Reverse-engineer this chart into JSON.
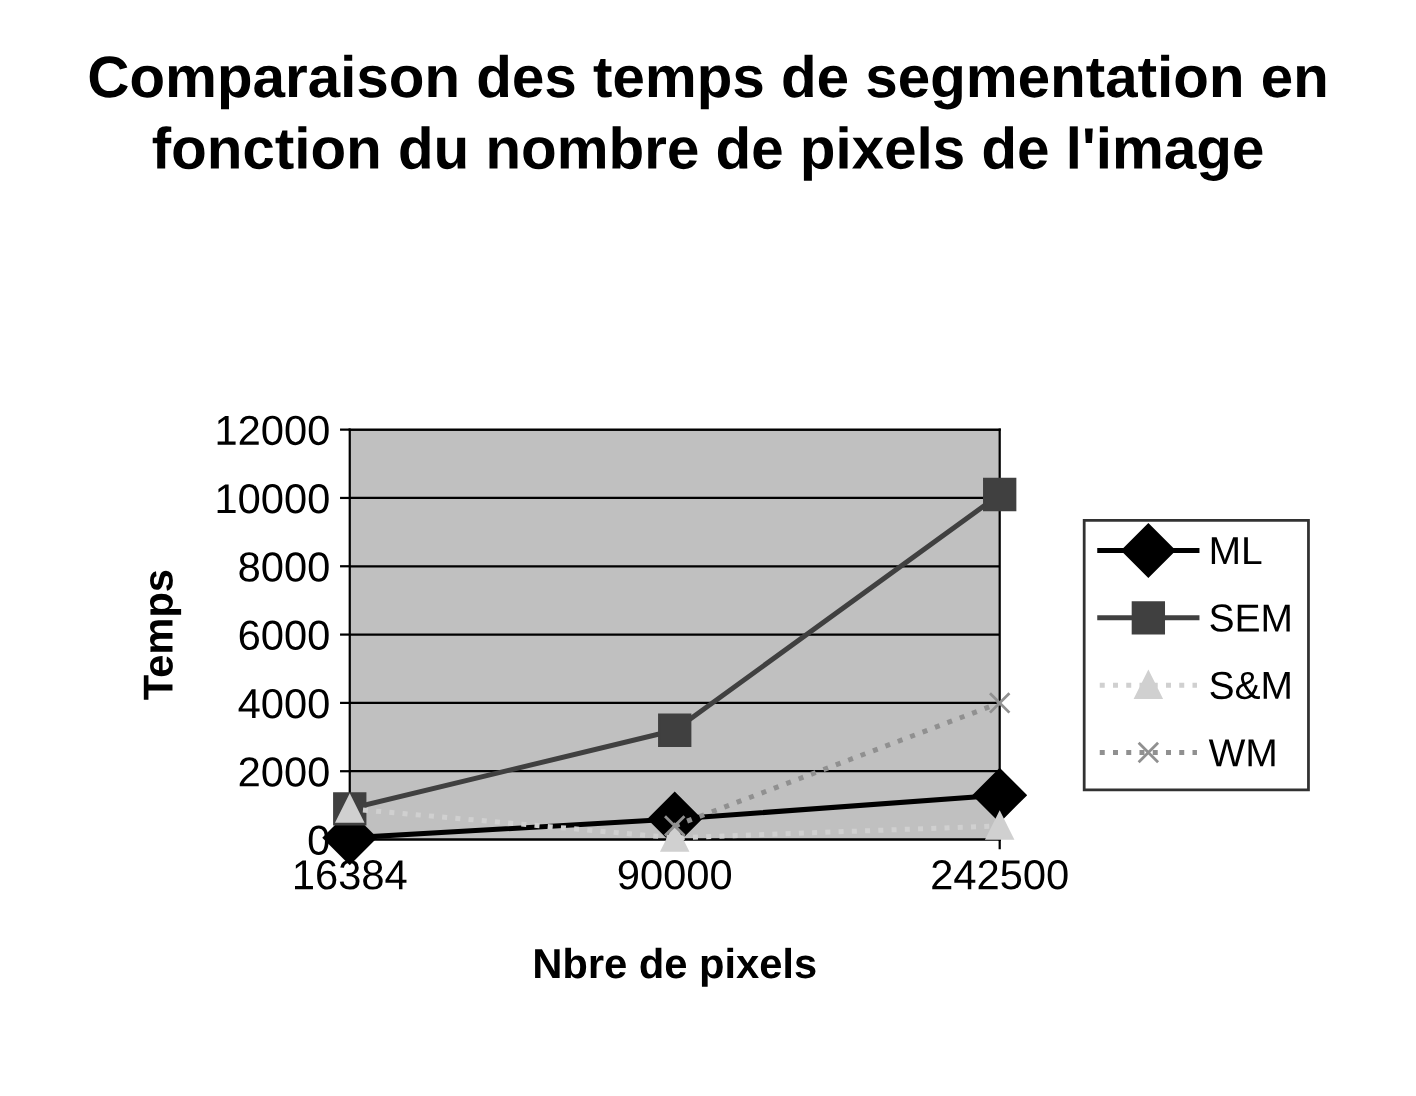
{
  "chart_data": {
    "type": "line",
    "title": "Comparaison des temps de segmentation en fonction du nombre de pixels de l'image",
    "xlabel": "Nbre de pixels",
    "ylabel": "Temps",
    "categories": [
      "16384",
      "90000",
      "242500"
    ],
    "series": [
      {
        "name": "ML",
        "color": "#000000",
        "values": [
          50,
          600,
          1300
        ],
        "marker": "diamond",
        "line_style": "solid"
      },
      {
        "name": "SEM",
        "color": "#404040",
        "values": [
          900,
          3200,
          10100
        ],
        "marker": "square",
        "line_style": "solid"
      },
      {
        "name": "S&M",
        "color": "#d0d0d0",
        "values": [
          900,
          50,
          400
        ],
        "marker": "triangle",
        "line_style": "dotted"
      },
      {
        "name": "WM",
        "color": "#909090",
        "values": [
          null,
          400,
          4000
        ],
        "marker": "cross",
        "line_style": "dotted"
      }
    ],
    "ylim": [
      0,
      12000
    ],
    "yticks": [
      0,
      2000,
      4000,
      6000,
      8000,
      10000,
      12000
    ],
    "grid": "y",
    "legend": "right"
  }
}
